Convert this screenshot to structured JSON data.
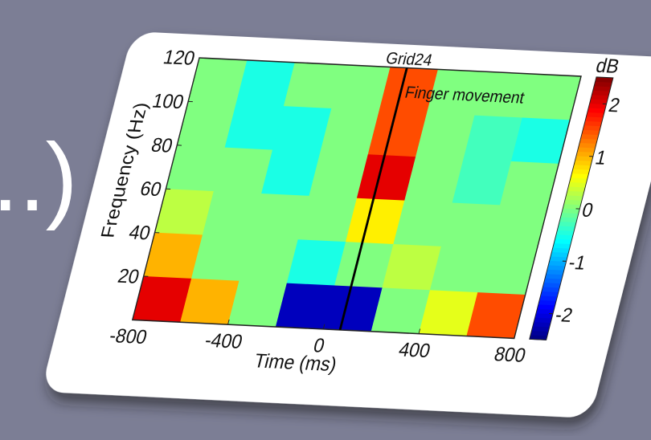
{
  "left_fragment": "..)",
  "chart_data": {
    "type": "heatmap",
    "title": "Grid24",
    "xlabel": "Time (ms)",
    "ylabel": "Frequency (Hz)",
    "x": [
      -700,
      -500,
      -300,
      -100,
      100,
      300,
      500,
      700
    ],
    "y": [
      110,
      90,
      70,
      50,
      30,
      10
    ],
    "z": [
      [
        0,
        -0.5,
        0,
        0,
        1.5,
        0,
        0,
        0
      ],
      [
        0,
        -0.5,
        -0.5,
        0,
        1.5,
        0,
        -0.3,
        -0.5
      ],
      [
        0,
        0,
        -0.5,
        0,
        2,
        0,
        -0.3,
        0
      ],
      [
        0.3,
        0,
        0,
        0,
        0.7,
        0,
        0,
        0
      ],
      [
        1,
        0,
        0,
        -0.5,
        0,
        0.3,
        0,
        0
      ],
      [
        2,
        1,
        0,
        -2.2,
        -2.2,
        0,
        0.5,
        1.5
      ]
    ],
    "xlim": [
      -800,
      800
    ],
    "xticks": [
      -800,
      -400,
      0,
      400,
      800
    ],
    "ylim": [
      0,
      120
    ],
    "yticks": [
      20,
      40,
      60,
      80,
      100,
      120
    ],
    "zlim": [
      -2.5,
      2.5
    ],
    "zticks": [
      -2,
      -1,
      0,
      1,
      2
    ],
    "zlabel": "dB",
    "colormap": "jet",
    "event_line": {
      "x": 70,
      "label": "Finger movement"
    }
  }
}
